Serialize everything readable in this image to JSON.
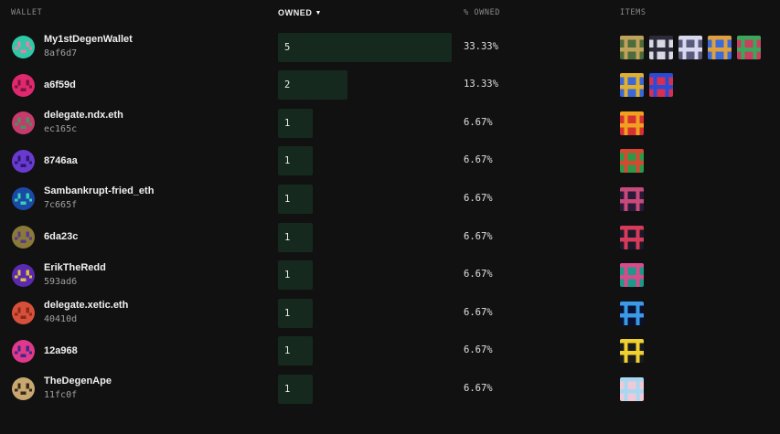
{
  "header": {
    "wallet": "WALLET",
    "owned": "OWNED",
    "pct_owned": "% OWNED",
    "items": "ITEMS"
  },
  "rows": [
    {
      "name": "My1stDegenWallet",
      "sub": "8af6d7",
      "owned": "5",
      "owned_fraction": 1.0,
      "pct": "33.33%",
      "avatar": {
        "bg": "#2fc9a8",
        "fg": "#f07aa8"
      },
      "items": [
        [
          "#4d6b3b",
          "#c0a25a"
        ],
        [
          "#d9d9e6",
          "#2b2b3a"
        ],
        [
          "#5a5a7a",
          "#d8d8f0"
        ],
        [
          "#3a6bd8",
          "#e0a040"
        ],
        [
          "#c84060",
          "#3aa85a"
        ]
      ]
    },
    {
      "name": "a6f59d",
      "sub": "",
      "owned": "2",
      "owned_fraction": 0.4,
      "pct": "13.33%",
      "avatar": {
        "bg": "#e0286e",
        "fg": "#7a1440"
      },
      "items": [
        [
          "#3a66d8",
          "#e0b030"
        ],
        [
          "#d83050",
          "#2a4ad8"
        ]
      ]
    },
    {
      "name": "delegate.ndx.eth",
      "sub": "ec165c",
      "owned": "1",
      "owned_fraction": 0.2,
      "pct": "6.67%",
      "avatar": {
        "bg": "#c83a6e",
        "fg": "#3a9a5a"
      },
      "items": [
        [
          "#d83030",
          "#f0a020"
        ]
      ]
    },
    {
      "name": "8746aa",
      "sub": "",
      "owned": "1",
      "owned_fraction": 0.2,
      "pct": "6.67%",
      "avatar": {
        "bg": "#6a3ad0",
        "fg": "#2a1870"
      },
      "items": [
        [
          "#2a9a48",
          "#d84830"
        ]
      ]
    },
    {
      "name": "Sambankrupt-fried_eth",
      "sub": "7c665f",
      "owned": "1",
      "owned_fraction": 0.2,
      "pct": "6.67%",
      "avatar": {
        "bg": "#1a4aa8",
        "fg": "#3ad0b0"
      },
      "items": [
        [
          "#2a1a3a",
          "#c84a7a"
        ]
      ]
    },
    {
      "name": "6da23c",
      "sub": "",
      "owned": "1",
      "owned_fraction": 0.2,
      "pct": "6.67%",
      "avatar": {
        "bg": "#8a7a3a",
        "fg": "#5a3a8a"
      },
      "items": [
        [
          "#1a1a2a",
          "#d83a5a"
        ]
      ]
    },
    {
      "name": "ErikTheRedd",
      "sub": "593ad6",
      "owned": "1",
      "owned_fraction": 0.2,
      "pct": "6.67%",
      "avatar": {
        "bg": "#5a2ab0",
        "fg": "#e0c040"
      },
      "items": [
        [
          "#1a9a8a",
          "#d84a8a"
        ]
      ]
    },
    {
      "name": "delegate.xetic.eth",
      "sub": "40410d",
      "owned": "1",
      "owned_fraction": 0.2,
      "pct": "6.67%",
      "avatar": {
        "bg": "#d8503a",
        "fg": "#8a2a1a"
      },
      "items": [
        [
          "#0a1030",
          "#3a9ae8"
        ]
      ]
    },
    {
      "name": "12a968",
      "sub": "",
      "owned": "1",
      "owned_fraction": 0.2,
      "pct": "6.67%",
      "avatar": {
        "bg": "#e0388a",
        "fg": "#3a2a8a"
      },
      "items": [
        [
          "#1a1a1a",
          "#f0d030"
        ]
      ]
    },
    {
      "name": "TheDegenApe",
      "sub": "11fc0f",
      "owned": "1",
      "owned_fraction": 0.2,
      "pct": "6.67%",
      "avatar": {
        "bg": "#c8a870",
        "fg": "#3a2a1a"
      },
      "items": [
        [
          "#f0c8d8",
          "#a8d8f0"
        ]
      ]
    }
  ]
}
